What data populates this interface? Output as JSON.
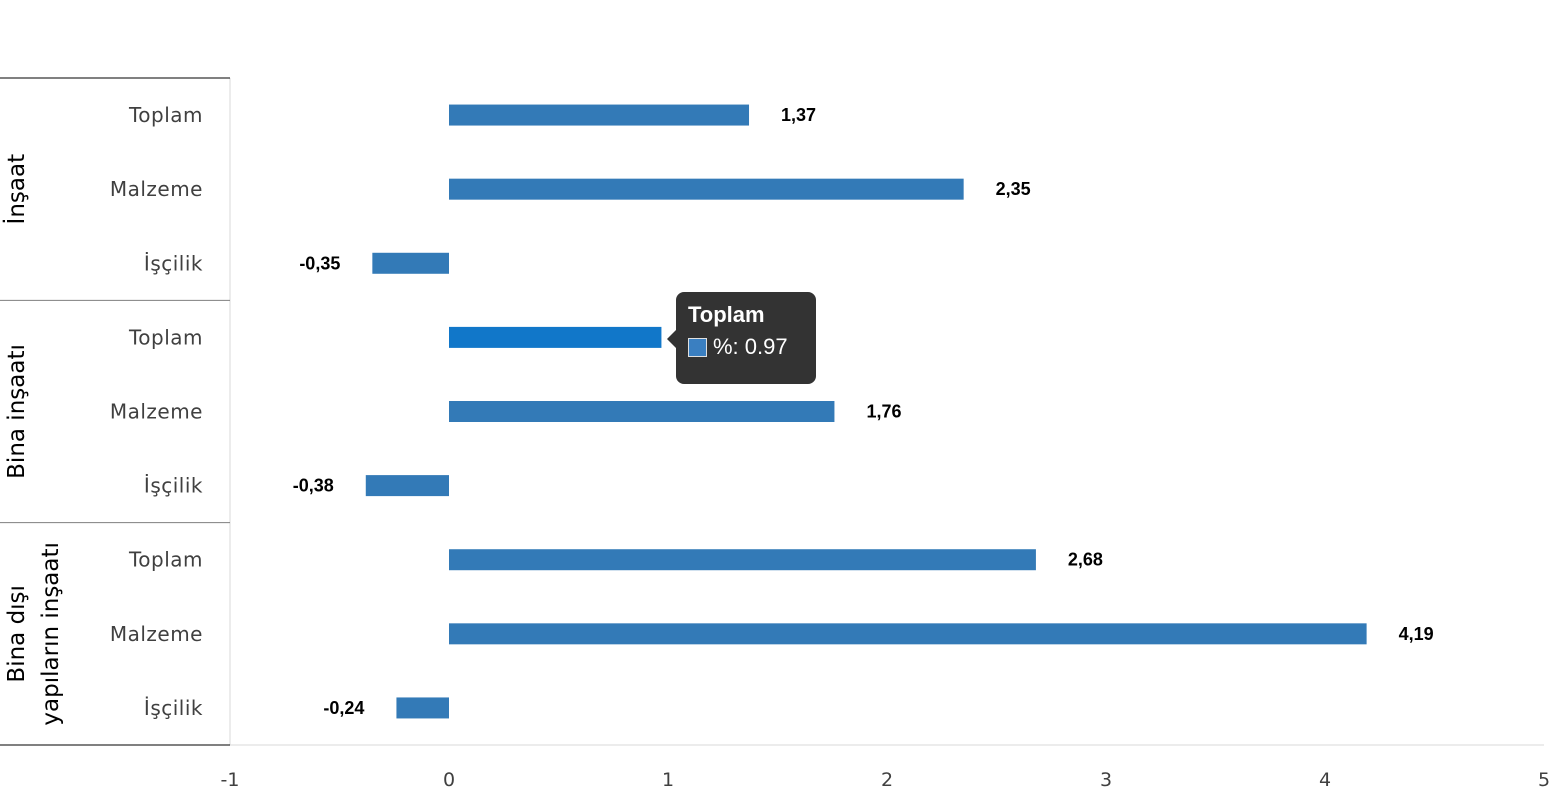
{
  "chart_data": {
    "type": "bar",
    "orientation": "horizontal",
    "groups": [
      {
        "name": "İnşaat",
        "categories": [
          "Toplam",
          "Malzeme",
          "İşçilik"
        ],
        "values": [
          1.37,
          2.35,
          -0.35
        ],
        "labels": [
          "1,37",
          "2,35",
          "-0,35"
        ]
      },
      {
        "name": "Bina inşaatı",
        "categories": [
          "Toplam",
          "Malzeme",
          "İşçilik"
        ],
        "values": [
          0.97,
          1.76,
          -0.38
        ],
        "labels": [
          "0,97",
          "1,76",
          "-0,38"
        ]
      },
      {
        "name_lines": [
          "Bina dışı",
          "yapıların inşaatı"
        ],
        "categories": [
          "Toplam",
          "Malzeme",
          "İşçilik"
        ],
        "values": [
          2.68,
          4.19,
          -0.24
        ],
        "labels": [
          "2,68",
          "4,19",
          "-0,24"
        ]
      }
    ],
    "xlim": [
      -1,
      5
    ],
    "x_ticks": [
      "-1",
      "0",
      "1",
      "2",
      "3",
      "4",
      "5"
    ],
    "bar_color": "#337ab7",
    "highlight_color": "#1177c9",
    "highlighted": {
      "group": 1,
      "index": 0
    }
  },
  "tooltip": {
    "title": "Toplam",
    "value_text": "%: 0.97"
  }
}
